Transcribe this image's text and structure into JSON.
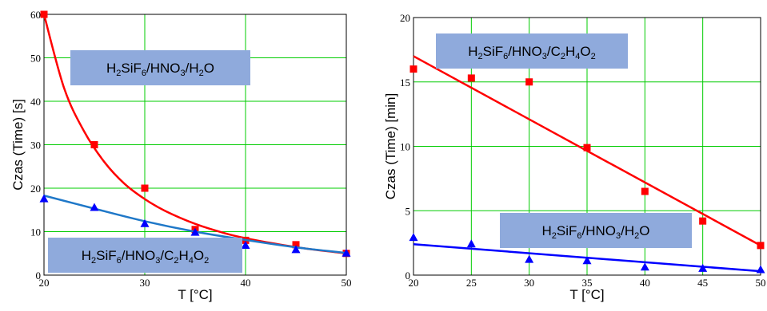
{
  "chart_data": [
    {
      "type": "scatter",
      "xlabel": "T [°C]",
      "ylabel": "Czas (Time) [s]",
      "xlim": [
        20,
        50
      ],
      "ylim": [
        0,
        60
      ],
      "xticks": [
        "20",
        "30",
        "40",
        "50"
      ],
      "yticks": [
        "0",
        "10",
        "20",
        "30",
        "40",
        "50",
        "60"
      ],
      "grid": true,
      "series": [
        {
          "name": "H2SiF6/HNO3/H2O",
          "marker": "square",
          "color": "#ff0000",
          "x": [
            20,
            25,
            30,
            35,
            40,
            45,
            50
          ],
          "y": [
            60,
            30,
            20,
            10.5,
            8,
            7,
            5
          ],
          "fit": {
            "x": [
              20,
              22,
              24,
              26,
              28,
              30,
              32,
              35,
              38,
              40,
              43,
              46,
              50
            ],
            "y": [
              60,
              43,
              33,
              26,
              21,
              17.5,
              14.8,
              11.8,
              9.6,
              8.5,
              7.2,
              6.1,
              5
            ]
          }
        },
        {
          "name": "H2SiF6/HNO3/C2H4O2",
          "marker": "triangle",
          "color": "#0000ff",
          "x": [
            20,
            25,
            30,
            35,
            40,
            45,
            50
          ],
          "y": [
            17.5,
            15.5,
            11.8,
            9.8,
            6.8,
            5.8,
            5
          ],
          "fit": {
            "x": [
              20,
              25,
              30,
              35,
              40,
              45,
              50
            ],
            "y": [
              18.3,
              15.3,
              12.4,
              10,
              8.1,
              6.4,
              5.1
            ]
          }
        }
      ],
      "labels": [
        {
          "parts": [
            "H",
            "2",
            "SiF",
            "6",
            "/HNO",
            "3",
            "/H",
            "2",
            "O"
          ],
          "color": "#8faadc"
        },
        {
          "parts": [
            "H",
            "2",
            "SiF",
            "6",
            "/HNO",
            "3",
            "/C",
            "2",
            "H",
            "4",
            "O",
            "2"
          ],
          "color": "#8faadc"
        }
      ]
    },
    {
      "type": "scatter",
      "xlabel": "T [°C]",
      "ylabel": "Czas (Time) [min]",
      "xlim": [
        20,
        50
      ],
      "ylim": [
        0,
        20
      ],
      "xticks": [
        "20",
        "25",
        "30",
        "35",
        "40",
        "45",
        "50"
      ],
      "yticks": [
        "0",
        "5",
        "10",
        "15",
        "20"
      ],
      "grid": true,
      "series": [
        {
          "name": "H2SiF6/HNO3/C2H4O2",
          "marker": "square",
          "color": "#ff0000",
          "x": [
            20,
            25,
            30,
            35,
            40,
            45,
            50
          ],
          "y": [
            16,
            15.3,
            15,
            9.9,
            6.5,
            4.2,
            2.3
          ],
          "fit": {
            "x": [
              20,
              50
            ],
            "y": [
              17,
              2.3
            ]
          }
        },
        {
          "name": "H2SiF6/HNO3/H2O",
          "marker": "triangle",
          "color": "#0000ff",
          "x": [
            20,
            25,
            30,
            35,
            40,
            45,
            50
          ],
          "y": [
            2.9,
            2.4,
            1.2,
            1.1,
            0.6,
            0.5,
            0.4
          ],
          "fit": {
            "x": [
              20,
              50
            ],
            "y": [
              2.4,
              0.3
            ]
          }
        }
      ],
      "labels": [
        {
          "parts": [
            "H",
            "2",
            "SiF",
            "6",
            "/HNO",
            "3",
            "/C",
            "2",
            "H",
            "4",
            "O",
            "2"
          ],
          "color": "#8faadc"
        },
        {
          "parts": [
            "H",
            "2",
            "SiF",
            "6",
            "/HNO",
            "3",
            "/H",
            "2",
            "O"
          ],
          "color": "#8faadc"
        }
      ]
    }
  ]
}
